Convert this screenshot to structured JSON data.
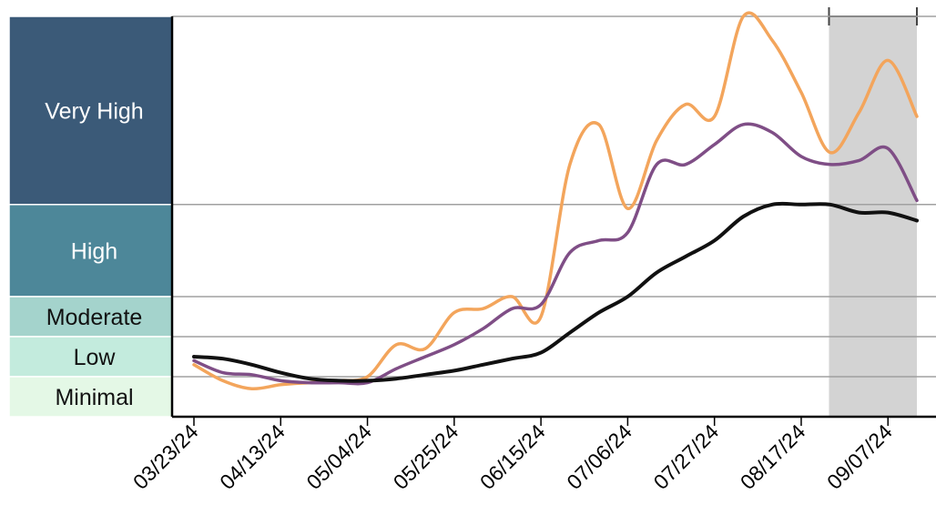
{
  "chart_data": {
    "type": "line",
    "x_tick_labels": [
      "03/23/24",
      "04/13/24",
      "05/04/24",
      "05/25/24",
      "06/15/24",
      "07/06/24",
      "07/27/24",
      "08/17/24",
      "09/07/24"
    ],
    "levels": [
      {
        "name": "Very High",
        "color": "#3b5a78",
        "text_color": "#ffffff"
      },
      {
        "name": "High",
        "color": "#4d8799",
        "text_color": "#ffffff"
      },
      {
        "name": "Moderate",
        "color": "#a4d3cc",
        "text_color": "#111111"
      },
      {
        "name": "Low",
        "color": "#c3ebdd",
        "text_color": "#111111"
      },
      {
        "name": "Minimal",
        "color": "#e4f8e6",
        "text_color": "#111111"
      }
    ],
    "x_range": [
      "2024-03-23",
      "2024-09-14"
    ],
    "y_range": [
      0,
      100
    ],
    "level_thresholds": [
      10,
      20,
      30,
      53
    ],
    "shaded_period": {
      "start": "2024-08-31",
      "end": "2024-09-14",
      "color": "#d3d3d3"
    },
    "series": [
      {
        "color": "#f3a55c",
        "points": [
          [
            "2024-03-23",
            13
          ],
          [
            "2024-03-30",
            9
          ],
          [
            "2024-04-06",
            7
          ],
          [
            "2024-04-13",
            8
          ],
          [
            "2024-04-20",
            8.5
          ],
          [
            "2024-04-27",
            9
          ],
          [
            "2024-05-04",
            10
          ],
          [
            "2024-05-11",
            18
          ],
          [
            "2024-05-18",
            17
          ],
          [
            "2024-05-25",
            26
          ],
          [
            "2024-06-01",
            27
          ],
          [
            "2024-06-08",
            30
          ],
          [
            "2024-06-15",
            25
          ],
          [
            "2024-06-22",
            63
          ],
          [
            "2024-06-29",
            73
          ],
          [
            "2024-07-06",
            52
          ],
          [
            "2024-07-13",
            69
          ],
          [
            "2024-07-20",
            78
          ],
          [
            "2024-07-27",
            75
          ],
          [
            "2024-08-03",
            100
          ],
          [
            "2024-08-10",
            94
          ],
          [
            "2024-08-17",
            81
          ],
          [
            "2024-08-24",
            66
          ],
          [
            "2024-08-31",
            76
          ],
          [
            "2024-09-07",
            89
          ],
          [
            "2024-09-14",
            75
          ]
        ]
      },
      {
        "color": "#7f4e86",
        "points": [
          [
            "2024-03-23",
            14
          ],
          [
            "2024-03-30",
            11
          ],
          [
            "2024-04-06",
            10.5
          ],
          [
            "2024-04-13",
            9
          ],
          [
            "2024-04-20",
            8.5
          ],
          [
            "2024-04-27",
            8.5
          ],
          [
            "2024-05-04",
            8.5
          ],
          [
            "2024-05-11",
            12
          ],
          [
            "2024-05-18",
            15
          ],
          [
            "2024-05-25",
            18
          ],
          [
            "2024-06-01",
            22
          ],
          [
            "2024-06-08",
            27
          ],
          [
            "2024-06-15",
            28
          ],
          [
            "2024-06-22",
            41
          ],
          [
            "2024-06-29",
            44
          ],
          [
            "2024-07-06",
            46
          ],
          [
            "2024-07-13",
            63
          ],
          [
            "2024-07-20",
            63
          ],
          [
            "2024-07-27",
            68
          ],
          [
            "2024-08-03",
            73
          ],
          [
            "2024-08-10",
            71
          ],
          [
            "2024-08-17",
            65
          ],
          [
            "2024-08-24",
            63
          ],
          [
            "2024-08-31",
            64
          ],
          [
            "2024-09-07",
            67
          ],
          [
            "2024-09-14",
            54
          ]
        ]
      },
      {
        "color": "#111111",
        "points": [
          [
            "2024-03-23",
            15
          ],
          [
            "2024-03-30",
            14.5
          ],
          [
            "2024-04-06",
            13
          ],
          [
            "2024-04-13",
            11
          ],
          [
            "2024-04-20",
            9.5
          ],
          [
            "2024-04-27",
            9
          ],
          [
            "2024-05-04",
            9
          ],
          [
            "2024-05-11",
            9.5
          ],
          [
            "2024-05-18",
            10.5
          ],
          [
            "2024-05-25",
            11.5
          ],
          [
            "2024-06-01",
            13
          ],
          [
            "2024-06-08",
            14.5
          ],
          [
            "2024-06-15",
            16
          ],
          [
            "2024-06-22",
            21
          ],
          [
            "2024-06-29",
            26
          ],
          [
            "2024-07-06",
            30
          ],
          [
            "2024-07-13",
            36
          ],
          [
            "2024-07-20",
            40
          ],
          [
            "2024-07-27",
            44
          ],
          [
            "2024-08-03",
            50
          ],
          [
            "2024-08-10",
            53
          ],
          [
            "2024-08-17",
            53
          ],
          [
            "2024-08-24",
            53
          ],
          [
            "2024-08-31",
            51
          ],
          [
            "2024-09-07",
            51
          ],
          [
            "2024-09-14",
            49
          ]
        ]
      }
    ]
  }
}
